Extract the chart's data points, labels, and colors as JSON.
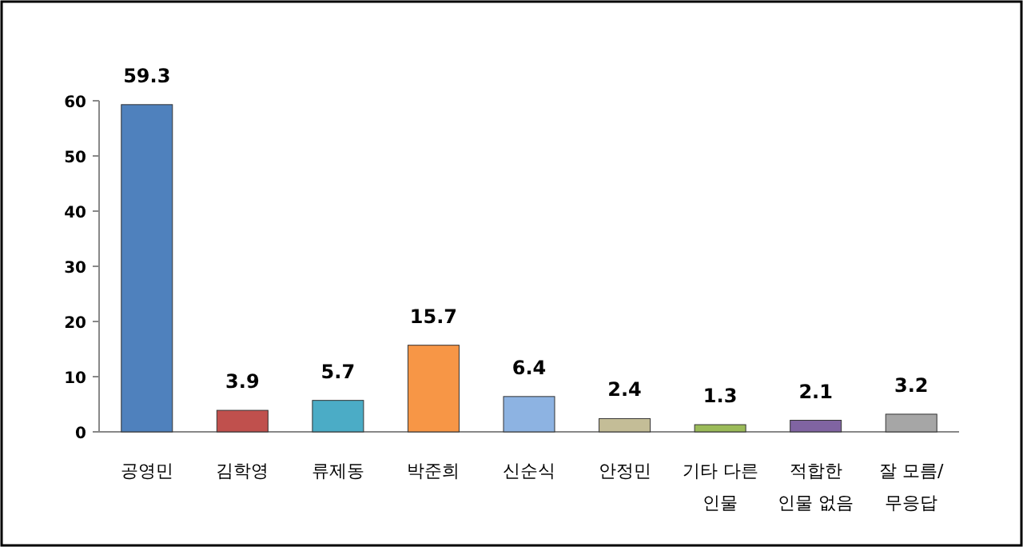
{
  "chart_data": {
    "type": "bar",
    "categories": [
      "공영민",
      "김학영",
      "류제동",
      "박준희",
      "신순식",
      "안정민",
      "기타 다른\n인물",
      "적합한\n인물 없음",
      "잘 모름/\n무응답"
    ],
    "values": [
      59.3,
      3.9,
      5.7,
      15.7,
      6.4,
      2.4,
      1.3,
      2.1,
      3.2
    ],
    "colors": [
      "#4f81bd",
      "#c0504d",
      "#4bacc6",
      "#f79646",
      "#8db3e2",
      "#c4bd97",
      "#9bbb59",
      "#8064a2",
      "#a6a6a6"
    ],
    "ylim": [
      0,
      60
    ],
    "yticks": [
      0,
      10,
      20,
      30,
      40,
      50,
      60
    ],
    "data_labels": true
  }
}
